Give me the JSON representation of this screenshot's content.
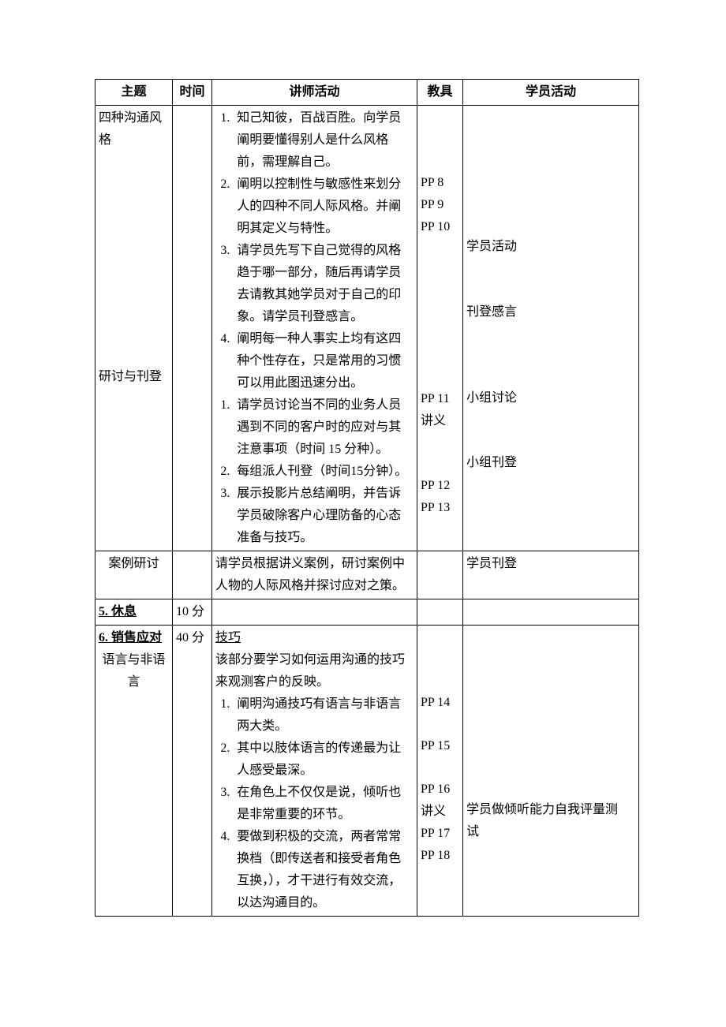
{
  "headers": {
    "topic": "主题",
    "time": "时间",
    "instructor": "讲师活动",
    "tools": "教具",
    "student": "学员活动"
  },
  "rows": [
    {
      "topic": {
        "lines": [
          "四种沟通风",
          "格"
        ],
        "lines2_label": "研讨与刊登",
        "lines2_gap_before": 10
      },
      "time": "",
      "instructor": {
        "list1": [
          "知己知彼，百战百胜。向学员阐明要懂得别人是什么风格前，需理解自己。",
          "阐明以控制性与敏感性来划分人的四种不同人际风格。并阐明其定义与特性。",
          "请学员先写下自己觉得的风格趋于哪一部分，随后再请学员去请教其她学员对于自己的印象。请学员刊登感言。",
          "阐明每一种人事实上均有这四种个性存在，只是常用的习惯可以用此图迅速分出。"
        ],
        "list2": [
          "请学员讨论当不同的业务人员遇到不同的客户时的应对与其注意事项（时间 15 分种）。",
          "每组派人刊登（时间15分钟）。",
          "展示投影片总结阐明，并告诉学员破除客户心理防备的心态准备与技巧。"
        ]
      },
      "tools": {
        "segments": [
          {
            "gap_before": 3,
            "lines": [
              "PP 8",
              "PP 9",
              "PP 10"
            ]
          },
          {
            "gap_before": 7,
            "lines": [
              "PP 11",
              "讲义"
            ]
          },
          {
            "gap_before": 2,
            "lines": [
              "PP 12",
              "PP 13"
            ]
          }
        ]
      },
      "student": {
        "segments": [
          {
            "gap_before": 6,
            "lines": [
              "学员活动"
            ]
          },
          {
            "gap_before": 2,
            "lines": [
              "刊登感言"
            ]
          },
          {
            "gap_before": 3,
            "lines": [
              "小组讨论"
            ]
          },
          {
            "gap_before": 2,
            "lines": [
              "小组刊登"
            ]
          }
        ]
      }
    },
    {
      "topic_center": "案例研讨",
      "time": "",
      "instructor_plain": "请学员根据讲义案例，研讨案例中人物的人际风格并探讨应对之策。",
      "tools_plain": "",
      "student_plain": "学员刊登"
    },
    {
      "topic_bold_underline": "5. 休息",
      "time": "10 分",
      "instructor_plain": "",
      "tools_plain": "",
      "student_plain": ""
    },
    {
      "topic": {
        "first_bold_underline": "6. 销售应对",
        "lines": [
          "语言与非语",
          "言"
        ],
        "lines_centerish": true
      },
      "time": "40 分",
      "instructor": {
        "heading_underline": "技巧",
        "intro": "该部分要学习如何运用沟通的技巧来观测客户的反映。",
        "list1": [
          "阐明沟通技巧有语言与非语言两大类。",
          "其中以肢体语言的传递最为让人感受最深。",
          "在角色上不仅仅是说，倾听也是非常重要的环节。",
          "要做到积极的交流，两者常常换档（即传送者和接受者角色互换，），才干进行有效交流，以达沟通目的。"
        ]
      },
      "tools": {
        "segments": [
          {
            "gap_before": 3,
            "lines": [
              "PP 14"
            ]
          },
          {
            "gap_before": 1,
            "lines": [
              "PP 15"
            ]
          },
          {
            "gap_before": 1,
            "lines": [
              "PP 16",
              "讲义",
              "PP 17",
              "PP 18"
            ]
          }
        ]
      },
      "student": {
        "segments": [
          {
            "gap_before": 8,
            "lines": [
              "学员做倾听能力自我评量测",
              "试"
            ]
          }
        ]
      }
    }
  ]
}
